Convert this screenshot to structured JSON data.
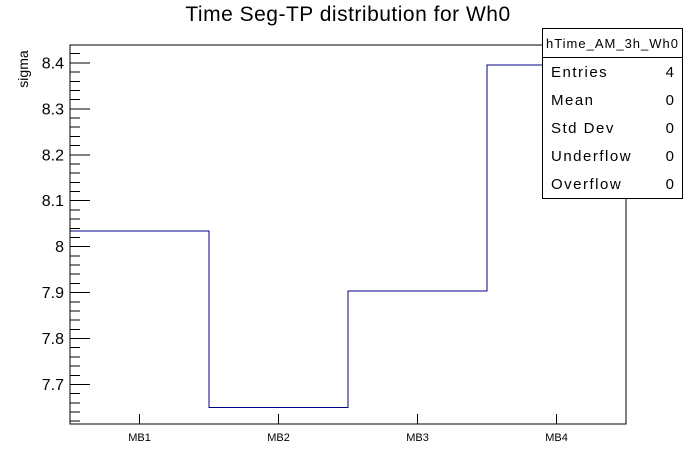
{
  "chart_data": {
    "type": "bar",
    "style": "root-step-histogram-outline",
    "title": "Time Seg-TP distribution for Wh0",
    "xlabel": "",
    "ylabel": "sigma",
    "categories": [
      "MB1",
      "MB2",
      "MB3",
      "MB4"
    ],
    "values": [
      8.034,
      7.65,
      7.903,
      8.396
    ],
    "ylim": [
      7.614,
      8.439
    ],
    "y_major_ticks": [
      7.7,
      7.8,
      7.9,
      8.0,
      8.1,
      8.2,
      8.3,
      8.4
    ],
    "y_minor_step": 0.02,
    "grid": false,
    "legend": "none",
    "line_color": "#00008b",
    "frame_color": "#000000",
    "background_color": "#ffffff"
  },
  "stats_box": {
    "title": "hTime_AM_3h_Wh0",
    "rows": [
      {
        "label": "Entries",
        "value": "4"
      },
      {
        "label": "Mean",
        "value": "0"
      },
      {
        "label": "Std Dev",
        "value": "0"
      },
      {
        "label": "Underflow",
        "value": "0"
      },
      {
        "label": "Overflow",
        "value": "0"
      }
    ]
  }
}
